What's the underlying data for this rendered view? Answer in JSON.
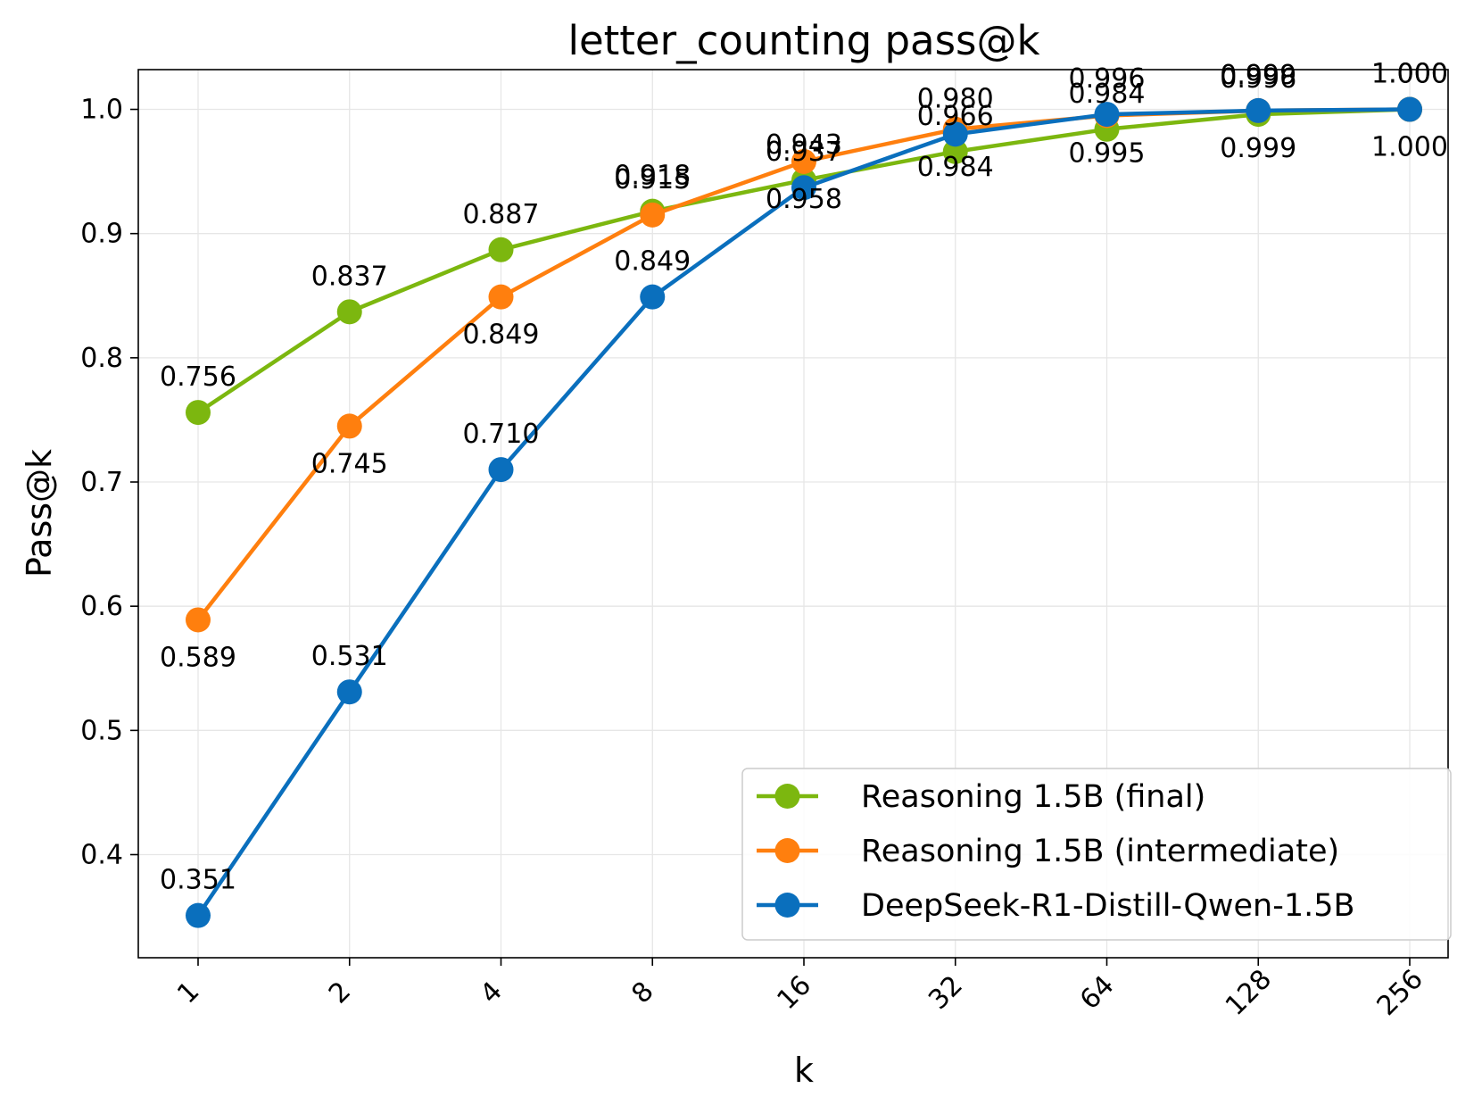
{
  "chart_data": {
    "type": "line",
    "title": "letter_counting pass@k",
    "xlabel": "k",
    "ylabel": "Pass@k",
    "categories": [
      "1",
      "2",
      "4",
      "8",
      "16",
      "32",
      "64",
      "128",
      "256"
    ],
    "ylim": [
      0.317,
      1.032
    ],
    "yticks": [
      "0.4",
      "0.5",
      "0.6",
      "0.7",
      "0.8",
      "0.9",
      "1.0"
    ],
    "grid": true,
    "legend_position": "bottom-right",
    "series": [
      {
        "name": "Reasoning 1.5B (final)",
        "color": "#7cb70f",
        "values": [
          0.756,
          0.837,
          0.887,
          0.918,
          0.943,
          0.966,
          0.984,
          0.996,
          1.0
        ],
        "labels": [
          "0.756",
          "0.837",
          "0.887",
          "0.918",
          "0.943",
          "0.966",
          "0.984",
          "0.996",
          "1.000"
        ],
        "label_positions": [
          "above",
          "above",
          "above",
          "above",
          "above",
          "above",
          "above",
          "above",
          "above"
        ]
      },
      {
        "name": "Reasoning 1.5B (intermediate)",
        "color": "#ff7f0e",
        "values": [
          0.589,
          0.745,
          0.849,
          0.915,
          0.958,
          0.984,
          0.995,
          0.999,
          1.0
        ],
        "labels": [
          "0.589",
          "0.745",
          "0.849",
          "0.915",
          "0.958",
          "0.984",
          "0.995",
          "0.999",
          "1.000"
        ],
        "label_positions": [
          "below",
          "below",
          "below",
          "above",
          "below",
          "below",
          "below",
          "below",
          "below"
        ]
      },
      {
        "name": "DeepSeek-R1-Distill-Qwen-1.5B",
        "color": "#0a6fbd",
        "values": [
          0.351,
          0.531,
          0.71,
          0.849,
          0.937,
          0.98,
          0.996,
          0.999,
          1.0
        ],
        "labels": [
          "0.351",
          "0.531",
          "0.710",
          "0.849",
          "0.937",
          "0.980",
          "0.996",
          "0.999",
          "1.000"
        ],
        "label_positions": [
          "above",
          "above",
          "above",
          "above",
          "above",
          "above",
          "above",
          "above",
          "above"
        ]
      }
    ]
  }
}
